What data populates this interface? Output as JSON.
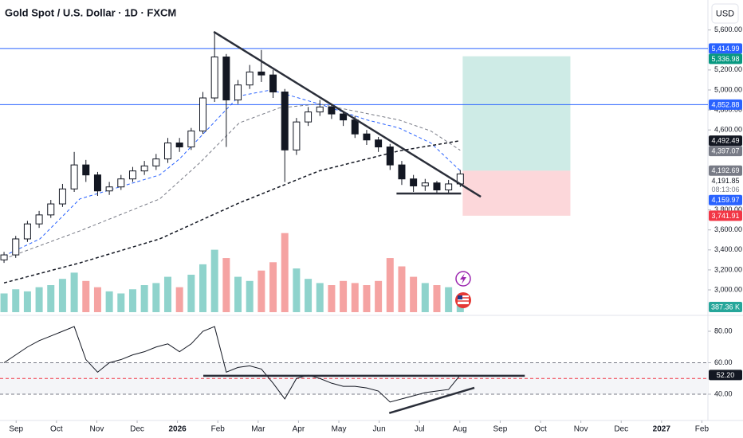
{
  "chart_data": {
    "type": "candlestick",
    "title": "Gold Spot / U.S. Dollar · 1D · FXCM",
    "currency": "USD",
    "xlim": [
      -0.4,
      17.15
    ],
    "xticks": [
      {
        "value": 0,
        "label": "Sep"
      },
      {
        "value": 1,
        "label": "Oct"
      },
      {
        "value": 2,
        "label": "Nov"
      },
      {
        "value": 3,
        "label": "Dec"
      },
      {
        "value": 4,
        "label": "2026"
      },
      {
        "value": 5,
        "label": "Feb"
      },
      {
        "value": 6,
        "label": "Mar"
      },
      {
        "value": 7,
        "label": "Apr"
      },
      {
        "value": 8,
        "label": "May"
      },
      {
        "value": 9,
        "label": "Jun"
      },
      {
        "value": 10,
        "label": "Jul"
      },
      {
        "value": 11,
        "label": "Aug"
      },
      {
        "value": 12,
        "label": "Sep"
      },
      {
        "value": 13,
        "label": "Oct"
      },
      {
        "value": 14,
        "label": "Nov"
      },
      {
        "value": 15,
        "label": "Dec"
      },
      {
        "value": 16,
        "label": "2027"
      },
      {
        "value": 17,
        "label": "Feb"
      }
    ],
    "ylim": [
      2777,
      5900
    ],
    "yticks": [
      {
        "value": 3000,
        "label": "3,000.00"
      },
      {
        "value": 3200,
        "label": "3,200.00"
      },
      {
        "value": 3400,
        "label": "3,400.00"
      },
      {
        "value": 3600,
        "label": "3,600.00"
      },
      {
        "value": 3800,
        "label": "3,800.00"
      },
      {
        "value": 4600,
        "label": "4,600.00"
      },
      {
        "value": 4800,
        "label": "4,800.00"
      },
      {
        "value": 5000,
        "label": "5,000.00"
      },
      {
        "value": 5200,
        "label": "5,200.00"
      },
      {
        "value": 5600,
        "label": "5,600.00"
      }
    ],
    "up_color": "#ffffff",
    "down_color": "#131722",
    "wick_color": "#131722",
    "x": [
      -0.3,
      -0.01,
      0.28,
      0.57,
      0.86,
      1.15,
      1.44,
      1.73,
      2.02,
      2.31,
      2.6,
      2.89,
      3.18,
      3.47,
      3.76,
      4.05,
      4.34,
      4.63,
      4.92,
      5.21,
      5.5,
      5.79,
      6.08,
      6.37,
      6.66,
      6.95,
      7.24,
      7.53,
      7.82,
      8.11,
      8.4,
      8.69,
      8.98,
      9.27,
      9.56,
      9.85,
      10.14,
      10.43,
      10.72,
      11.01
    ],
    "open": [
      3300,
      3350,
      3510,
      3660,
      3750,
      3860,
      4010,
      4250,
      4150,
      3990,
      4030,
      4110,
      4190,
      4240,
      4310,
      4470,
      4430,
      4590,
      4920,
      5330,
      4900,
      5050,
      5180,
      5150,
      4980,
      4400,
      4680,
      4780,
      4830,
      4760,
      4700,
      4560,
      4500,
      4430,
      4250,
      4110,
      4040,
      4070,
      4000,
      4060
    ],
    "high": [
      3380,
      3540,
      3690,
      3790,
      3900,
      4060,
      4380,
      4300,
      4180,
      4080,
      4150,
      4230,
      4290,
      4360,
      4520,
      4520,
      4620,
      4980,
      5580,
      5360,
      5100,
      5250,
      5400,
      5200,
      5010,
      4720,
      4830,
      4900,
      4860,
      4790,
      4740,
      4600,
      4530,
      4460,
      4290,
      4150,
      4110,
      4090,
      4100,
      4200
    ],
    "low": [
      3270,
      3320,
      3480,
      3620,
      3720,
      3830,
      3980,
      4080,
      3940,
      3950,
      4000,
      4080,
      4150,
      4200,
      4270,
      4380,
      4400,
      4560,
      4880,
      4430,
      4860,
      5010,
      5080,
      4920,
      4080,
      4350,
      4640,
      4740,
      4710,
      4640,
      4520,
      4450,
      4380,
      4200,
      4050,
      3980,
      3990,
      3960,
      3960,
      4030
    ],
    "close": [
      3350,
      3510,
      3660,
      3750,
      3860,
      4010,
      4250,
      4150,
      3990,
      4030,
      4110,
      4190,
      4240,
      4310,
      4470,
      4430,
      4590,
      4920,
      5330,
      4900,
      5050,
      5180,
      5150,
      4980,
      4400,
      4680,
      4780,
      4830,
      4760,
      4700,
      4560,
      4500,
      4430,
      4250,
      4110,
      4040,
      4070,
      4000,
      4060,
      4159.97
    ],
    "moving_averages": [
      {
        "color": "#2962ff",
        "x": [
          -0.3,
          0.59,
          1.58,
          2.57,
          3.56,
          4.05,
          5.53,
          6.32,
          7.51,
          8.7,
          9.49,
          10.28,
          11.01
        ],
        "values": [
          3340,
          3510,
          3910,
          4030,
          4150,
          4310,
          4940,
          5000,
          4860,
          4700,
          4620,
          4470,
          4192.69
        ]
      },
      {
        "color": "#787b86",
        "x": [
          -0.3,
          1.58,
          3.56,
          4.55,
          5.53,
          6.52,
          7.51,
          8.5,
          9.49,
          10.28,
          11.01
        ],
        "values": [
          3310,
          3590,
          3910,
          4270,
          4670,
          4820,
          4860,
          4780,
          4700,
          4590,
          4397.07
        ]
      },
      {
        "color": "#131722",
        "x": [
          -0.3,
          1.58,
          3.56,
          5.53,
          7.51,
          9.49,
          11.01
        ],
        "values": [
          3070,
          3270,
          3510,
          3870,
          4190,
          4390,
          4492.49
        ]
      }
    ],
    "volume": {
      "vlim": [
        0,
        15000
      ],
      "up_color": "#8fd3cc",
      "down_color": "#f5a3a2",
      "values": [
        900,
        1100,
        1000,
        1200,
        1300,
        1600,
        1900,
        1500,
        1200,
        1000,
        900,
        1100,
        1300,
        1400,
        1700,
        1200,
        1800,
        2300,
        3000,
        2600,
        1700,
        1500,
        2000,
        2400,
        3800,
        2100,
        1600,
        1400,
        1300,
        1500,
        1400,
        1300,
        1500,
        2600,
        2200,
        1700,
        1400,
        1300,
        1200,
        387.36
      ],
      "last_label": {
        "value": 387.36,
        "label": "387.36 K",
        "bg": "#26a69a"
      }
    },
    "price_labels": [
      {
        "value": 5414.99,
        "label": "5,414.99",
        "bg": "#2962ff",
        "line": true
      },
      {
        "value": 5336.98,
        "label": "5,336.98",
        "bg": "#089981"
      },
      {
        "value": 4852.88,
        "label": "4,852.88",
        "bg": "#2962ff",
        "line": true
      },
      {
        "value": 4492.49,
        "label": "4,492.49",
        "bg": "#131722"
      },
      {
        "value": 4397.07,
        "label": "4,397.07",
        "bg": "#787b86"
      },
      {
        "value": 4192.69,
        "label": "4,192.69",
        "bg": "#787b86"
      },
      {
        "value": 4191.85,
        "label": "4,191.85",
        "countdown": "08:13:06"
      },
      {
        "value": 4159.97,
        "label": "4,159.97",
        "bg": "#2962ff"
      },
      {
        "value": 3741.91,
        "label": "3,741.91",
        "bg": "#f23645"
      }
    ],
    "trendlines": [
      {
        "color": "#2a2e39",
        "points": [
          [
            4.9,
            5582
          ],
          [
            11.52,
            3932
          ]
        ]
      },
      {
        "color": "#2a2e39",
        "points": [
          [
            9.43,
            3964
          ],
          [
            11.03,
            3964
          ]
        ]
      }
    ],
    "position": {
      "x": [
        11.07,
        13.74
      ],
      "entry": 4192.69,
      "target": 5336.98,
      "stop": 3741.91,
      "profit_color": "rgba(8,153,129,0.2)",
      "loss_color": "rgba(242,54,69,0.2)"
    },
    "rsi": {
      "ylim": [
        24.8,
        88.1
      ],
      "yticks": [
        {
          "value": 40,
          "label": "40.00"
        },
        {
          "value": 60,
          "label": "60.00"
        },
        {
          "value": 80,
          "label": "80.00"
        }
      ],
      "color": "#131722",
      "values": [
        60,
        65,
        70,
        74,
        77,
        80,
        83,
        62,
        54,
        60,
        62,
        65,
        67,
        70,
        72,
        67,
        72,
        80,
        83,
        54,
        57,
        58,
        56,
        47,
        37,
        50,
        52,
        50,
        47,
        45,
        45,
        44,
        42,
        35,
        37,
        39,
        41,
        42,
        43,
        52.2
      ],
      "last_label": {
        "value": 52.2,
        "label": "52.20",
        "bg": "#131722"
      },
      "levels": [
        {
          "value": 60,
          "color": "#787b86"
        },
        {
          "value": 50,
          "color": "#f23645"
        },
        {
          "value": 40,
          "color": "#787b86"
        }
      ],
      "trendlines": [
        {
          "color": "#2a2e39",
          "points": [
            [
              4.64,
              51.7
            ],
            [
              12.61,
              51.7
            ]
          ]
        },
        {
          "color": "#2a2e39",
          "points": [
            [
              9.25,
              28
            ],
            [
              11.36,
              44.1
            ]
          ]
        }
      ]
    }
  }
}
